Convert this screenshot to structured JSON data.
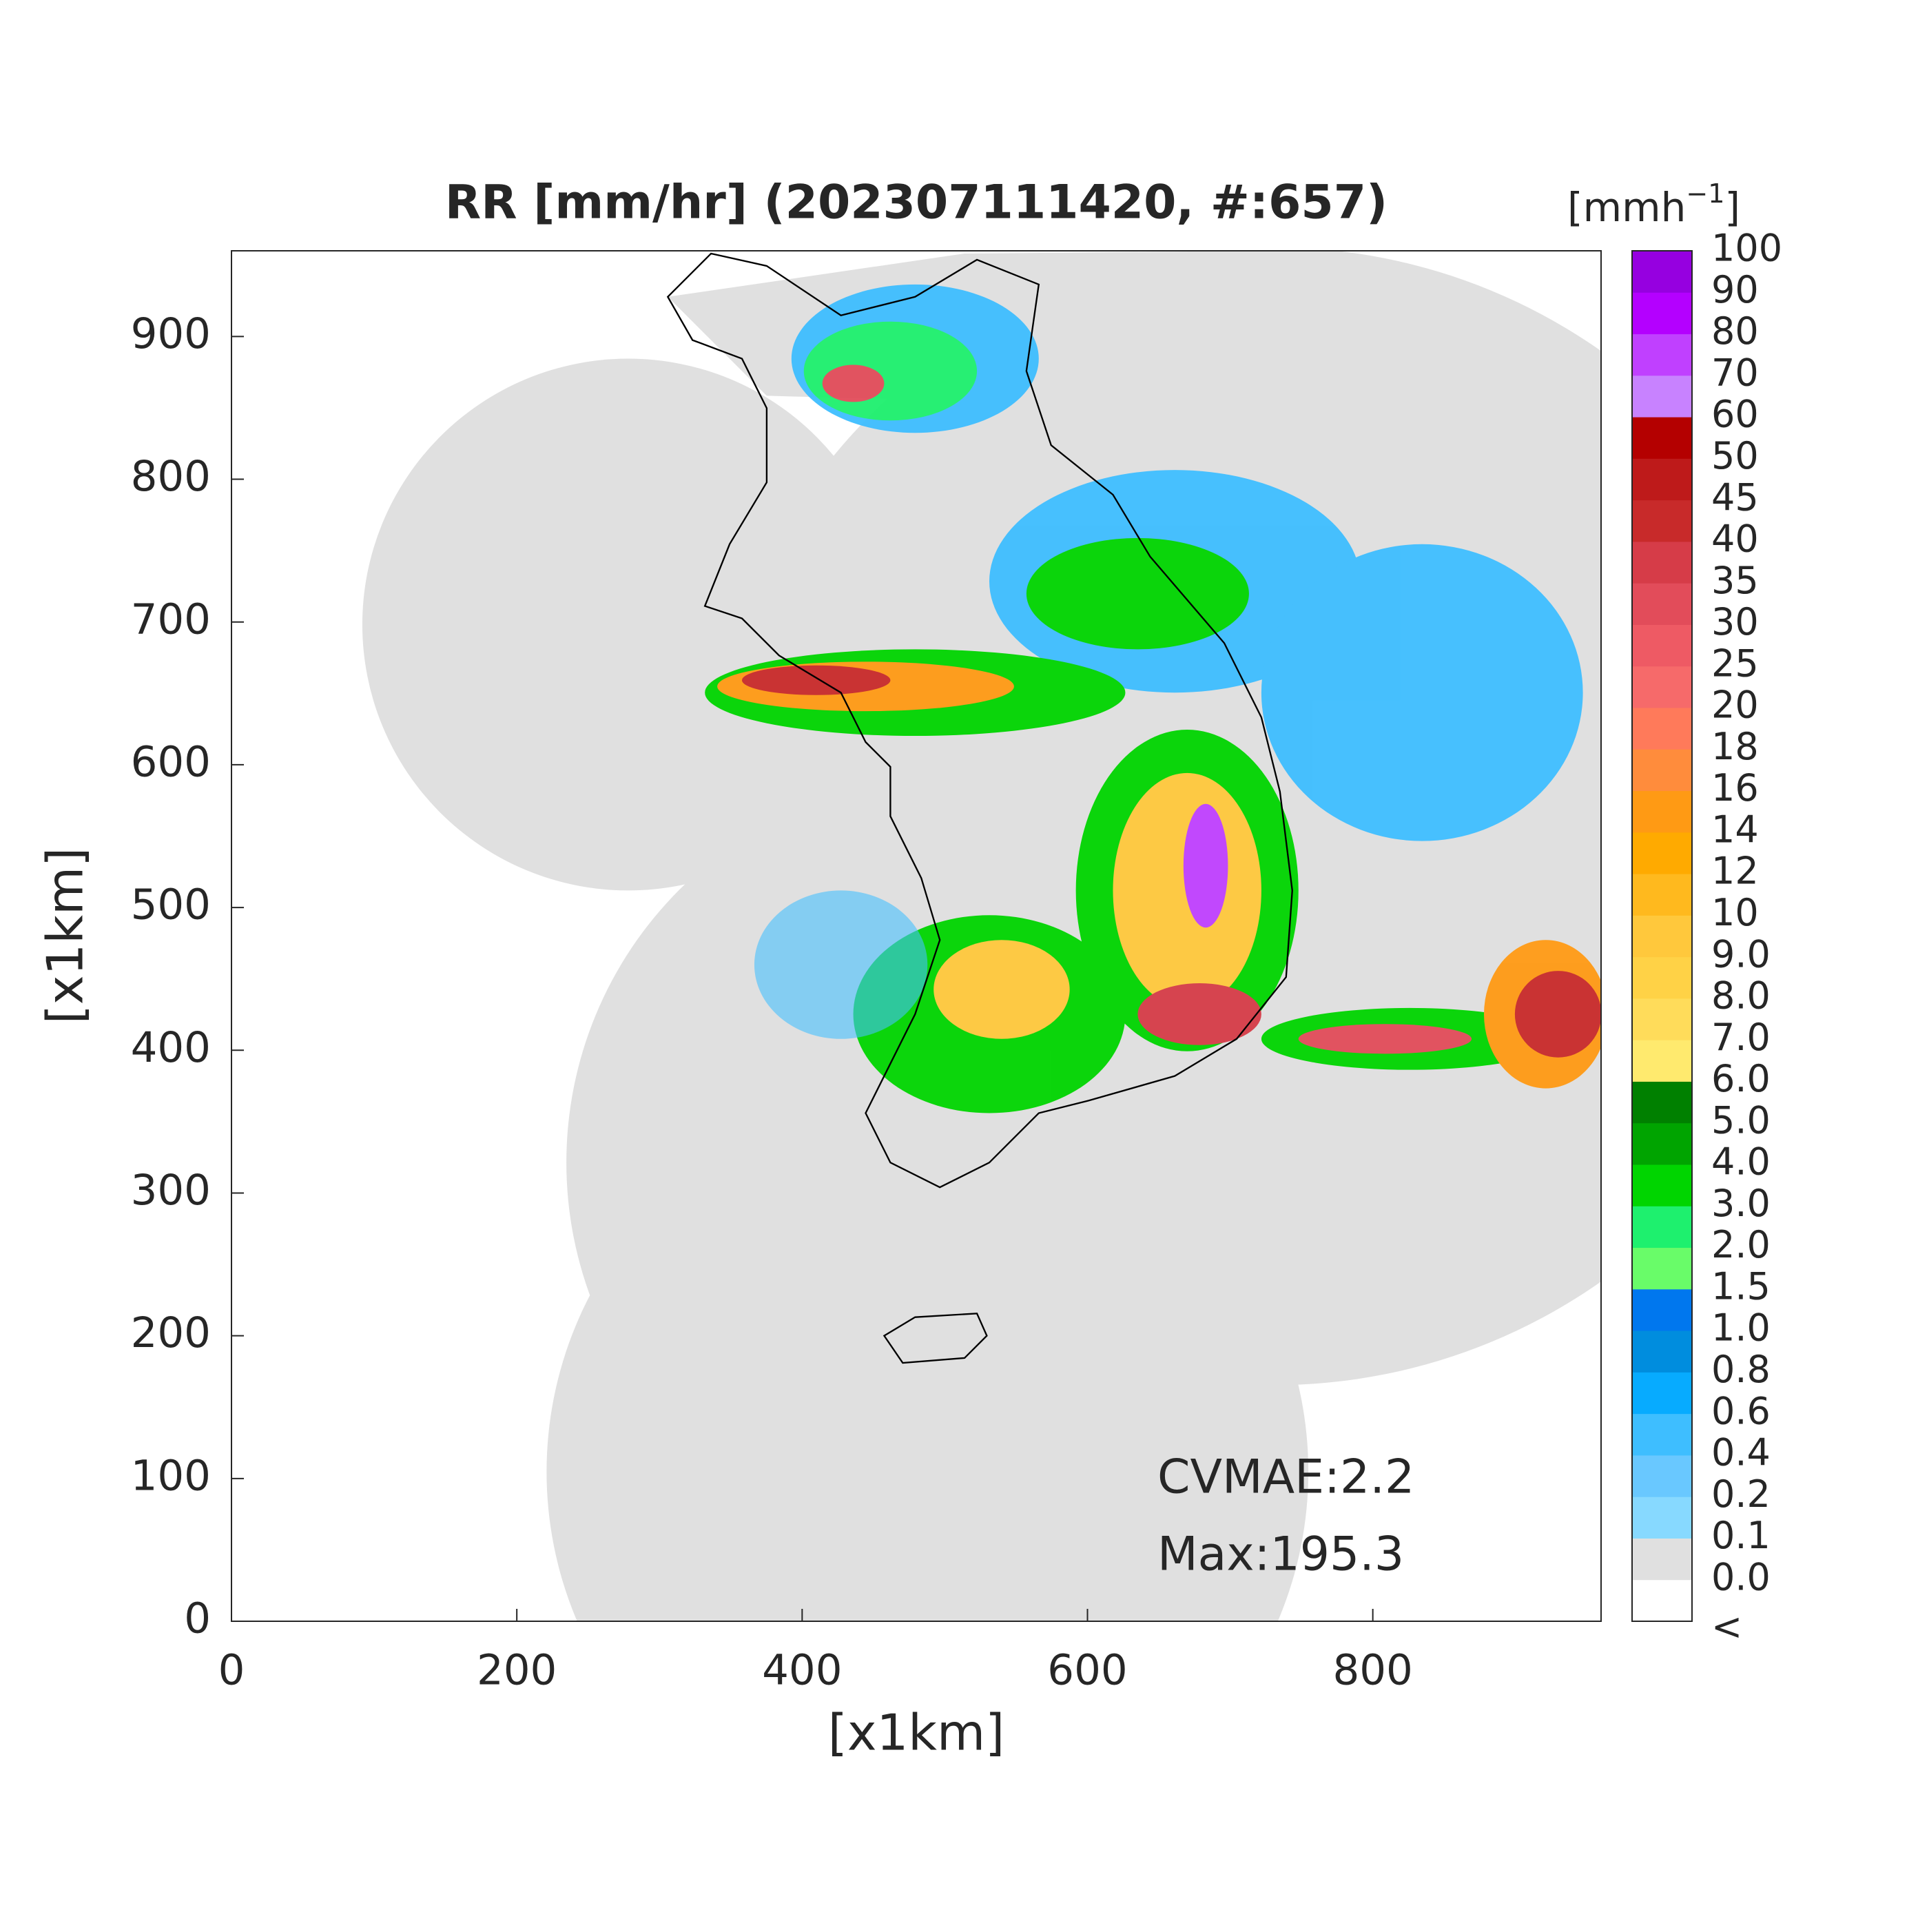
{
  "title": "RR [mm/hr] (202307111420, #:657)",
  "x_axis": {
    "label": "[x1km]",
    "lim": [
      0,
      960
    ],
    "ticks": [
      0,
      200,
      400,
      600,
      800
    ]
  },
  "y_axis": {
    "label": "[x1km]",
    "lim": [
      0,
      960
    ],
    "ticks": [
      0,
      100,
      200,
      300,
      400,
      500,
      600,
      700,
      800,
      900
    ]
  },
  "colorbar": {
    "unit": [
      "[mmh",
      "−1",
      "]"
    ],
    "labels": [
      "<",
      "0.0",
      "0.1",
      "0.2",
      "0.4",
      "0.6",
      "0.8",
      "1.0",
      "1.5",
      "2.0",
      "3.0",
      "4.0",
      "5.0",
      "6.0",
      "7.0",
      "8.0",
      "9.0",
      "10",
      "12",
      "14",
      "16",
      "18",
      "20",
      "25",
      "30",
      "35",
      "40",
      "45",
      "50",
      "60",
      "70",
      "80",
      "90",
      "100"
    ],
    "colors": [
      "#ffffff",
      "#e0e0e0",
      "#87d9ff",
      "#69c8ff",
      "#3ebeff",
      "#07abff",
      "#008dde",
      "#0077ee",
      "#69fc69",
      "#1ef06e",
      "#00d500",
      "#00a400",
      "#008000",
      "#ffea6e",
      "#ffdc5a",
      "#ffd246",
      "#ffc83c",
      "#ffb91e",
      "#ffaa00",
      "#ff9a14",
      "#ff8c3c",
      "#ff7a5a",
      "#f66a6a",
      "#ee5a64",
      "#e24c5a",
      "#d63c48",
      "#c82a2a",
      "#be1a1a",
      "#b40000",
      "#c882ff",
      "#c040ff",
      "#b400ff",
      "#9600e0",
      "#7c00c0",
      "#333333"
    ]
  },
  "annotations": [
    "CVMAE:2.2",
    "Max:195.3"
  ]
}
